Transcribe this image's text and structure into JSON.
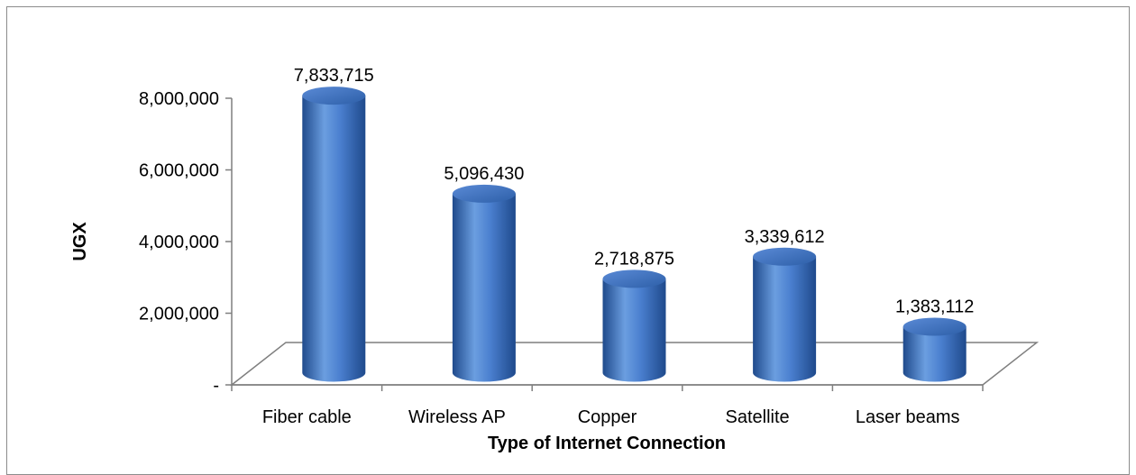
{
  "chart_data": {
    "type": "bar",
    "style": "3d-cylinder",
    "categories": [
      "Fiber cable",
      "Wireless AP",
      "Copper",
      "Satellite",
      "Laser beams"
    ],
    "values": [
      7833715,
      5096430,
      2718875,
      3339612,
      1383112
    ],
    "value_labels": [
      "7,833,715",
      "5,096,430",
      "2,718,875",
      "3,339,612",
      "1,383,112"
    ],
    "title": "",
    "xlabel": "Type of Internet Connection",
    "ylabel": "UGX",
    "ylim": [
      0,
      8000000
    ],
    "yticks": [
      0,
      2000000,
      4000000,
      6000000,
      8000000
    ],
    "ytick_labels": [
      "-",
      "2,000,000",
      "4,000,000",
      "6,000,000",
      "8,000,000"
    ],
    "grid": false,
    "legend": "none",
    "colors": {
      "bar_light": "#6b9ee0",
      "bar_mid": "#3f73c2",
      "bar_dark": "#1f4a8c",
      "top": "#4a7fcf",
      "floor": "#7f7f7f"
    }
  }
}
